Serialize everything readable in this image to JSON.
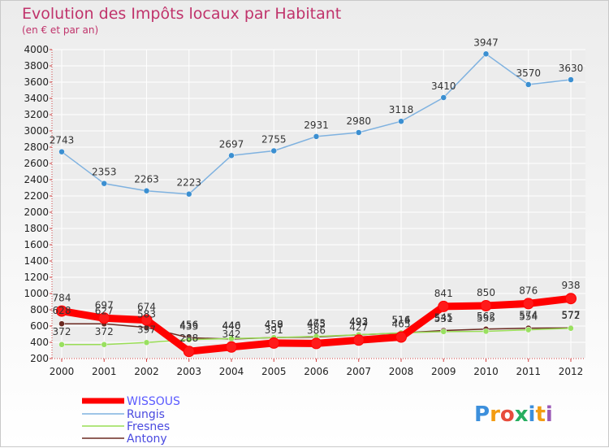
{
  "chart_data": {
    "type": "line",
    "title": "Evolution des Impôts locaux par Habitant",
    "subtitle": "(en € et par an)",
    "xlabel": "",
    "ylabel": "",
    "ylim": [
      200,
      4000
    ],
    "y_ticks": [
      200,
      400,
      600,
      800,
      1000,
      1200,
      1400,
      1600,
      1800,
      2000,
      2200,
      2400,
      2600,
      2800,
      3000,
      3200,
      3400,
      3600,
      3800,
      4000
    ],
    "categories": [
      "2000",
      "2001",
      "2002",
      "2003",
      "2004",
      "2005",
      "2006",
      "2007",
      "2008",
      "2009",
      "2010",
      "2011",
      "2012"
    ],
    "series": [
      {
        "name": "Antony",
        "color": "#6b2a22",
        "values": [
          628,
          627,
          583,
          456,
          440,
          459,
          465,
          492,
          514,
          545,
          562,
          574,
          577
        ],
        "labels": [
          "628",
          "627",
          "583",
          "456",
          "440",
          "459",
          "465",
          "492",
          "514",
          "545",
          "562",
          "574",
          "577"
        ]
      },
      {
        "name": "Fresnes",
        "color": "#99dd55",
        "values": [
          372,
          372,
          397,
          433,
          446,
          458,
          473,
          493,
          516,
          531,
          535,
          554,
          572
        ],
        "labels": [
          "372",
          "372",
          "397",
          "433",
          "446",
          "458",
          "473",
          "493",
          "516",
          "531",
          "535",
          "554",
          "572"
        ]
      },
      {
        "name": "Rungis",
        "color": "#5a9fd6",
        "values": [
          2743,
          2353,
          2263,
          2223,
          2697,
          2755,
          2931,
          2980,
          3118,
          3410,
          3947,
          3570,
          3630
        ],
        "labels": [
          "2743",
          "2353",
          "2263",
          "2223",
          "2697",
          "2755",
          "2931",
          "2980",
          "3118",
          "3410",
          "3947",
          "3570",
          "3630"
        ]
      },
      {
        "name": "WISSOUS",
        "color": "#ff0000",
        "values": [
          784,
          697,
          674,
          288,
          342,
          391,
          386,
          427,
          465,
          841,
          850,
          876,
          938
        ],
        "labels": [
          "784",
          "697",
          "674",
          "288",
          "342",
          "391",
          "386",
          "427",
          "465",
          "841",
          "850",
          "876",
          "938"
        ]
      }
    ],
    "legend": {
      "placement": "bottom-left",
      "entries": [
        "WISSOUS",
        "Rungis",
        "Fresnes",
        "Antony"
      ]
    }
  },
  "logo": {
    "text": "Proxiti"
  }
}
